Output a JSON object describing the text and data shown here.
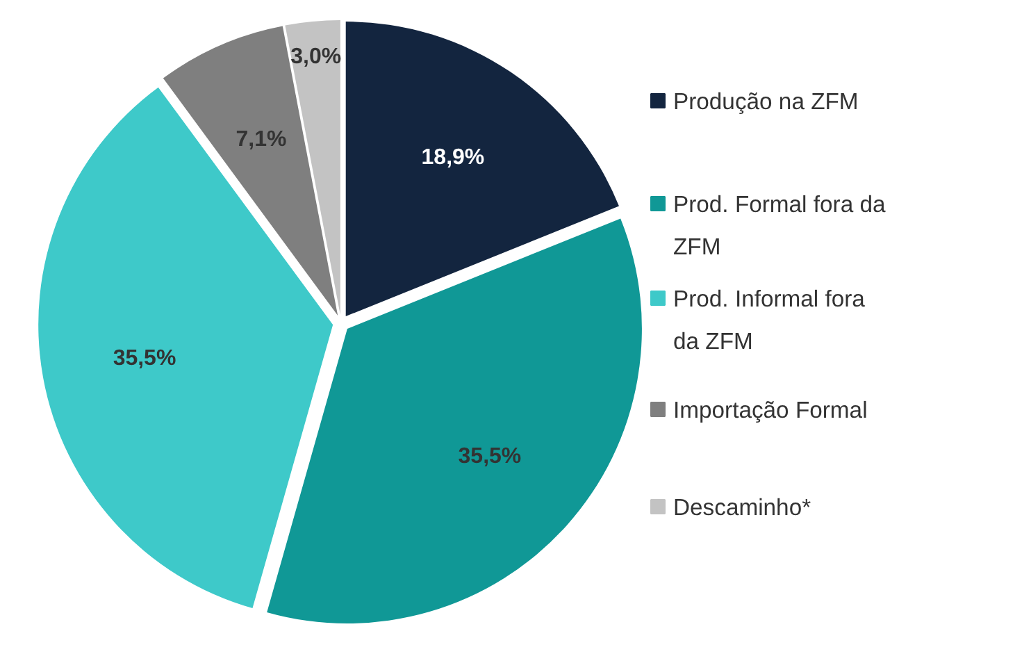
{
  "chart_data": {
    "type": "pie",
    "categories": [
      "Produção na ZFM",
      "Prod. Formal fora da ZFM",
      "Prod. Informal fora da ZFM",
      "Importação Formal",
      "Descaminho*"
    ],
    "values": [
      18.9,
      35.5,
      35.5,
      7.1,
      3.0
    ],
    "colors": [
      "#13253f",
      "#109896",
      "#3ec9c9",
      "#7f7f7f",
      "#c3c3c3"
    ],
    "value_labels": [
      "18,9%",
      "35,5%",
      "35,5%",
      "7,1%",
      "3,0%"
    ],
    "legend": "right"
  }
}
